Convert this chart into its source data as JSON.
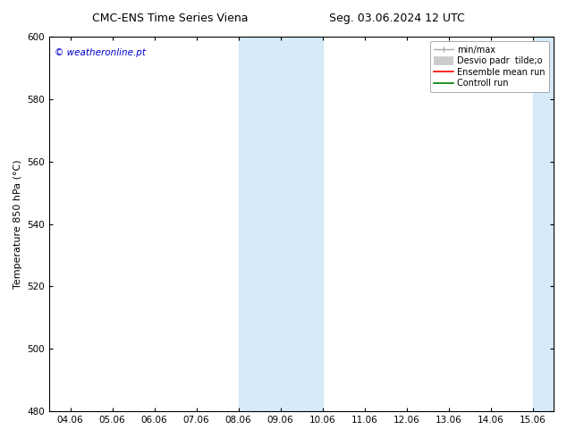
{
  "title_left": "CMC-ENS Time Series Viena",
  "title_right": "Seg. 03.06.2024 12 UTC",
  "ylabel": "Temperature 850 hPa (°C)",
  "xlabel_ticks": [
    "04.06",
    "05.06",
    "06.06",
    "07.06",
    "08.06",
    "09.06",
    "10.06",
    "11.06",
    "12.06",
    "13.06",
    "14.06",
    "15.06"
  ],
  "ylim": [
    480,
    600
  ],
  "yticks": [
    480,
    500,
    520,
    540,
    560,
    580,
    600
  ],
  "shaded_bands": [
    {
      "xmin": 4,
      "xmax": 6,
      "color": "#d6eaf8"
    },
    {
      "xmin": 11,
      "xmax": 12,
      "color": "#d6eaf8"
    }
  ],
  "watermark_text": "© weatheronline.pt",
  "watermark_color": "#0000cc",
  "legend_entries": [
    {
      "label": "min/max",
      "color": "#aaaaaa",
      "lw": 1.5
    },
    {
      "label": "Desvio padr  tilde;o",
      "color": "#cccccc",
      "lw": 6
    },
    {
      "label": "Ensemble mean run",
      "color": "#ff0000",
      "lw": 1.5
    },
    {
      "label": "Controll run",
      "color": "#008000",
      "lw": 1.5
    }
  ],
  "bg_color": "#ffffff",
  "axes_bg_color": "#ffffff",
  "grid_color": "#000000",
  "tick_label_fontsize": 7.5,
  "title_fontsize": 9,
  "ylabel_fontsize": 8,
  "legend_fontsize": 7,
  "watermark_fontsize": 7.5
}
